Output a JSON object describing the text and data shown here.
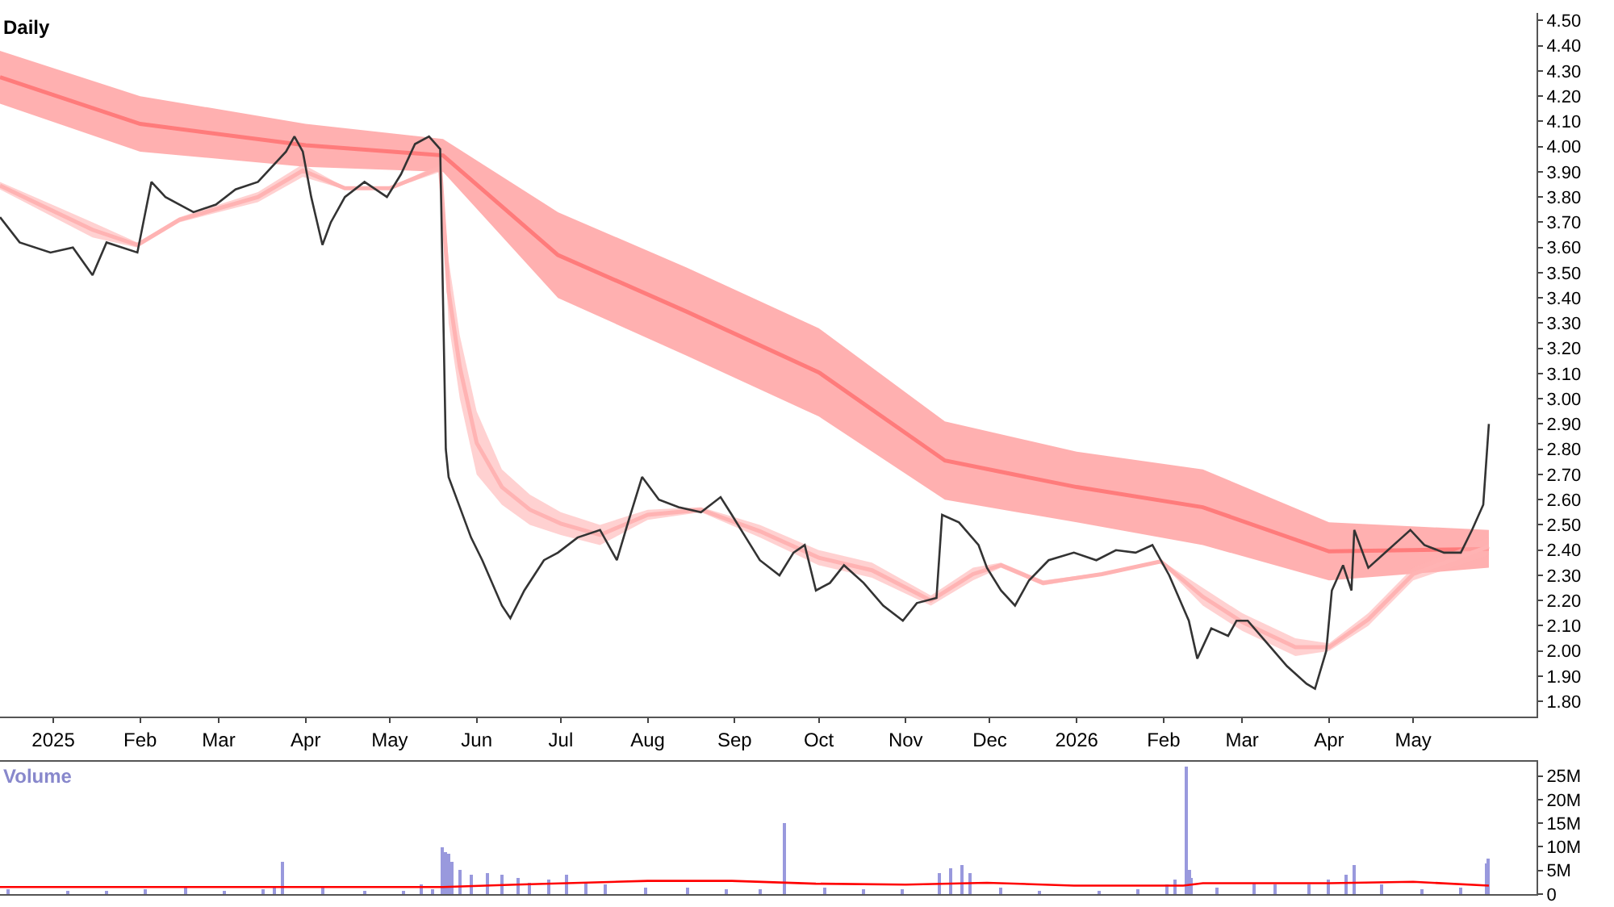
{
  "chart_data": [
    {
      "type": "line",
      "title": "Daily",
      "xlim": [
        "2024-12-13",
        "2026-06-14"
      ],
      "ylim": [
        1.74,
        4.53
      ],
      "xticks": [
        {
          "value": "2025-01-01",
          "label": "2025"
        },
        {
          "value": "2025-02-01",
          "label": "Feb"
        },
        {
          "value": "2025-03-01",
          "label": "Mar"
        },
        {
          "value": "2025-04-01",
          "label": "Apr"
        },
        {
          "value": "2025-05-01",
          "label": "May"
        },
        {
          "value": "2025-06-01",
          "label": "Jun"
        },
        {
          "value": "2025-07-01",
          "label": "Jul"
        },
        {
          "value": "2025-08-01",
          "label": "Aug"
        },
        {
          "value": "2025-09-01",
          "label": "Sep"
        },
        {
          "value": "2025-10-01",
          "label": "Oct"
        },
        {
          "value": "2025-11-01",
          "label": "Nov"
        },
        {
          "value": "2025-12-01",
          "label": "Dec"
        },
        {
          "value": "2026-01-01",
          "label": "2026"
        },
        {
          "value": "2026-02-01",
          "label": "Feb"
        },
        {
          "value": "2026-03-01",
          "label": "Mar"
        },
        {
          "value": "2026-04-01",
          "label": "Apr"
        },
        {
          "value": "2026-05-01",
          "label": "May"
        }
      ],
      "yticks": [
        {
          "value": 1.8,
          "label": "1.80"
        },
        {
          "value": 1.9,
          "label": "1.90"
        },
        {
          "value": 2.0,
          "label": "2.00"
        },
        {
          "value": 2.1,
          "label": "2.10"
        },
        {
          "value": 2.2,
          "label": "2.20"
        },
        {
          "value": 2.3,
          "label": "2.30"
        },
        {
          "value": 2.4,
          "label": "2.40"
        },
        {
          "value": 2.5,
          "label": "2.50"
        },
        {
          "value": 2.6,
          "label": "2.60"
        },
        {
          "value": 2.7,
          "label": "2.70"
        },
        {
          "value": 2.8,
          "label": "2.80"
        },
        {
          "value": 2.9,
          "label": "2.90"
        },
        {
          "value": 3.0,
          "label": "3.00"
        },
        {
          "value": 3.1,
          "label": "3.10"
        },
        {
          "value": 3.2,
          "label": "3.20"
        },
        {
          "value": 3.3,
          "label": "3.30"
        },
        {
          "value": 3.4,
          "label": "3.40"
        },
        {
          "value": 3.5,
          "label": "3.50"
        },
        {
          "value": 3.6,
          "label": "3.60"
        },
        {
          "value": 3.7,
          "label": "3.70"
        },
        {
          "value": 3.8,
          "label": "3.80"
        },
        {
          "value": 3.9,
          "label": "3.90"
        },
        {
          "value": 4.0,
          "label": "4.00"
        },
        {
          "value": 4.1,
          "label": "4.10"
        },
        {
          "value": 4.2,
          "label": "4.20"
        },
        {
          "value": 4.3,
          "label": "4.30"
        },
        {
          "value": 4.4,
          "label": "4.40"
        },
        {
          "value": 4.5,
          "label": "4.50"
        }
      ],
      "grid": false,
      "series": [
        {
          "color": "#ff7b7b",
          "x": [
            "2024-12-13",
            "2025-02-01",
            "2025-04-01",
            "2025-05-20",
            "2025-06-30",
            "2025-08-15",
            "2025-10-01",
            "2025-11-15",
            "2026-01-01",
            "2026-02-15",
            "2026-04-01",
            "2026-05-28"
          ],
          "lower": [
            4.17,
            3.98,
            3.92,
            3.9,
            3.4,
            3.17,
            2.93,
            2.6,
            2.51,
            2.42,
            2.28,
            2.33
          ],
          "upper": [
            4.38,
            4.2,
            4.09,
            4.03,
            3.74,
            3.52,
            3.28,
            2.91,
            2.79,
            2.72,
            2.51,
            2.48
          ],
          "values": [
            4.275,
            4.09,
            4.005,
            3.965,
            3.57,
            3.345,
            3.105,
            2.755,
            2.65,
            2.57,
            2.395,
            2.405
          ]
        },
        {
          "color": "#ffb3b3",
          "x": [
            "2024-12-13",
            "2025-01-15",
            "2025-01-31",
            "2025-02-15",
            "2025-03-15",
            "2025-03-31",
            "2025-04-15",
            "2025-05-01",
            "2025-05-19",
            "2025-05-22",
            "2025-05-26",
            "2025-06-01",
            "2025-06-10",
            "2025-06-20",
            "2025-07-01",
            "2025-07-15",
            "2025-08-01",
            "2025-08-20",
            "2025-09-10",
            "2025-10-01",
            "2025-10-20",
            "2025-11-10",
            "2025-11-25",
            "2025-12-05",
            "2025-12-20",
            "2026-01-10",
            "2026-01-31",
            "2026-02-15",
            "2026-03-01",
            "2026-03-20",
            "2026-04-01",
            "2026-04-15",
            "2026-05-01",
            "2026-05-28"
          ],
          "lower": [
            3.83,
            3.64,
            3.6,
            3.7,
            3.78,
            3.88,
            3.83,
            3.83,
            3.9,
            3.3,
            3.0,
            2.7,
            2.58,
            2.5,
            2.46,
            2.42,
            2.52,
            2.55,
            2.45,
            2.34,
            2.29,
            2.18,
            2.28,
            2.33,
            2.26,
            2.3,
            2.35,
            2.18,
            2.08,
            1.98,
            2.0,
            2.1,
            2.28,
            2.38
          ],
          "upper": [
            3.86,
            3.7,
            3.62,
            3.72,
            3.82,
            3.93,
            3.84,
            3.84,
            3.93,
            3.55,
            3.25,
            2.95,
            2.72,
            2.62,
            2.55,
            2.5,
            2.56,
            2.57,
            2.5,
            2.4,
            2.35,
            2.22,
            2.33,
            2.35,
            2.28,
            2.31,
            2.36,
            2.25,
            2.15,
            2.05,
            2.03,
            2.15,
            2.33,
            2.45
          ],
          "values": [
            3.845,
            3.67,
            3.61,
            3.71,
            3.8,
            3.905,
            3.835,
            3.835,
            3.915,
            3.425,
            3.125,
            2.825,
            2.65,
            2.56,
            2.505,
            2.46,
            2.54,
            2.56,
            2.475,
            2.37,
            2.32,
            2.2,
            2.305,
            2.34,
            2.27,
            2.305,
            2.355,
            2.215,
            2.115,
            2.015,
            2.015,
            2.125,
            2.305,
            2.415
          ]
        },
        {
          "color": "#333333",
          "x": [
            "2024-12-13",
            "2024-12-20",
            "2024-12-31",
            "2025-01-08",
            "2025-01-15",
            "2025-01-20",
            "2025-01-31",
            "2025-02-05",
            "2025-02-10",
            "2025-02-20",
            "2025-02-28",
            "2025-03-07",
            "2025-03-15",
            "2025-03-25",
            "2025-03-28",
            "2025-03-31",
            "2025-04-03",
            "2025-04-07",
            "2025-04-10",
            "2025-04-15",
            "2025-04-22",
            "2025-04-30",
            "2025-05-05",
            "2025-05-10",
            "2025-05-15",
            "2025-05-19",
            "2025-05-21",
            "2025-05-22",
            "2025-05-26",
            "2025-05-30",
            "2025-06-03",
            "2025-06-10",
            "2025-06-13",
            "2025-06-18",
            "2025-06-25",
            "2025-06-30",
            "2025-07-07",
            "2025-07-15",
            "2025-07-21",
            "2025-07-25",
            "2025-07-30",
            "2025-08-05",
            "2025-08-12",
            "2025-08-20",
            "2025-08-27",
            "2025-08-31",
            "2025-09-05",
            "2025-09-10",
            "2025-09-17",
            "2025-09-22",
            "2025-09-26",
            "2025-09-30",
            "2025-10-05",
            "2025-10-10",
            "2025-10-17",
            "2025-10-24",
            "2025-10-31",
            "2025-11-05",
            "2025-11-12",
            "2025-11-14",
            "2025-11-20",
            "2025-11-27",
            "2025-11-30",
            "2025-12-05",
            "2025-12-10",
            "2025-12-15",
            "2025-12-22",
            "2025-12-31",
            "2026-01-08",
            "2026-01-15",
            "2026-01-22",
            "2026-01-28",
            "2026-02-03",
            "2026-02-10",
            "2026-02-13",
            "2026-02-18",
            "2026-02-24",
            "2026-02-27",
            "2026-03-03",
            "2026-03-10",
            "2026-03-17",
            "2026-03-24",
            "2026-03-27",
            "2026-03-31",
            "2026-04-02",
            "2026-04-06",
            "2026-04-09",
            "2026-04-10",
            "2026-04-15",
            "2026-04-20",
            "2026-04-27",
            "2026-04-30",
            "2026-05-05",
            "2026-05-12",
            "2026-05-18",
            "2026-05-22",
            "2026-05-26",
            "2026-05-28"
          ],
          "values": [
            3.72,
            3.62,
            3.58,
            3.6,
            3.49,
            3.62,
            3.58,
            3.86,
            3.8,
            3.74,
            3.77,
            3.83,
            3.86,
            3.98,
            4.04,
            3.98,
            3.8,
            3.61,
            3.7,
            3.8,
            3.86,
            3.8,
            3.89,
            4.01,
            4.04,
            3.99,
            2.8,
            2.69,
            2.57,
            2.45,
            2.36,
            2.18,
            2.13,
            2.24,
            2.36,
            2.39,
            2.45,
            2.48,
            2.36,
            2.51,
            2.69,
            2.6,
            2.57,
            2.55,
            2.61,
            2.54,
            2.45,
            2.36,
            2.3,
            2.39,
            2.42,
            2.24,
            2.27,
            2.34,
            2.27,
            2.18,
            2.12,
            2.19,
            2.21,
            2.54,
            2.51,
            2.42,
            2.33,
            2.24,
            2.18,
            2.28,
            2.36,
            2.39,
            2.36,
            2.4,
            2.39,
            2.42,
            2.3,
            2.12,
            1.97,
            2.09,
            2.06,
            2.12,
            2.12,
            2.03,
            1.94,
            1.87,
            1.85,
            2.0,
            2.24,
            2.34,
            2.24,
            2.48,
            2.33,
            2.38,
            2.45,
            2.48,
            2.42,
            2.39,
            2.39,
            2.48,
            2.58,
            2.9
          ]
        }
      ]
    },
    {
      "type": "bar",
      "title": "Volume",
      "xlim": [
        "2024-12-13",
        "2026-06-14"
      ],
      "ylim": [
        0,
        28
      ],
      "tick_labels": "y",
      "grid": false,
      "yticks": [
        0,
        {
          "value": 5,
          "label": "5M"
        },
        {
          "value": 10,
          "label": "10M"
        },
        {
          "value": 15,
          "label": "15M"
        },
        {
          "value": 20,
          "label": "20M"
        },
        {
          "value": 25,
          "label": "25M"
        }
      ],
      "series": [
        {
          "color": "#9999dd",
          "x": [
            "2024-12-16",
            "2025-01-06",
            "2025-01-20",
            "2025-02-03",
            "2025-02-17",
            "2025-03-03",
            "2025-03-17",
            "2025-03-21",
            "2025-03-24",
            "2025-04-07",
            "2025-04-22",
            "2025-05-06",
            "2025-05-12",
            "2025-05-16",
            "2025-05-20",
            "2025-05-21",
            "2025-05-22",
            "2025-05-23",
            "2025-05-26",
            "2025-05-30",
            "2025-06-05",
            "2025-06-10",
            "2025-06-16",
            "2025-06-20",
            "2025-06-27",
            "2025-07-03",
            "2025-07-10",
            "2025-07-17",
            "2025-07-31",
            "2025-08-15",
            "2025-08-29",
            "2025-09-10",
            "2025-09-19",
            "2025-10-03",
            "2025-10-17",
            "2025-10-31",
            "2025-11-13",
            "2025-11-17",
            "2025-11-21",
            "2025-11-24",
            "2025-12-05",
            "2025-12-19",
            "2026-01-09",
            "2026-01-23",
            "2026-02-02",
            "2026-02-05",
            "2026-02-09",
            "2026-02-10",
            "2026-02-11",
            "2026-02-20",
            "2026-03-05",
            "2026-03-13",
            "2026-03-25",
            "2026-04-01",
            "2026-04-07",
            "2026-04-10",
            "2026-04-20",
            "2026-05-04",
            "2026-05-18",
            "2026-05-27",
            "2026-05-28"
          ],
          "values": [
            1.0,
            0.8,
            0.8,
            0.9,
            1.5,
            0.8,
            0.9,
            1.8,
            7.0,
            1.5,
            0.7,
            0.8,
            2.0,
            1.0,
            10.0,
            9.0,
            8.5,
            7.0,
            5.0,
            4.0,
            4.5,
            4.0,
            3.5,
            2.5,
            3.0,
            4.0,
            2.5,
            2.0,
            1.5,
            1.2,
            1.0,
            1.0,
            15.0,
            1.2,
            1.0,
            1.0,
            4.5,
            5.5,
            6.0,
            4.5,
            1.2,
            0.8,
            0.8,
            1.0,
            2.0,
            3.0,
            27.0,
            5.0,
            3.5,
            1.5,
            2.5,
            2.0,
            2.0,
            3.0,
            4.0,
            6.0,
            2.0,
            1.0,
            1.2,
            6.5,
            7.5
          ]
        },
        {
          "type": "line",
          "color": "#ff0000",
          "x": [
            "2024-12-13",
            "2025-05-20",
            "2025-06-15",
            "2025-08-01",
            "2025-08-31",
            "2025-09-30",
            "2025-11-01",
            "2025-11-30",
            "2025-12-31",
            "2026-02-08",
            "2026-02-15",
            "2026-04-01",
            "2026-05-01",
            "2026-05-28"
          ],
          "values": [
            1.5,
            1.5,
            2.0,
            2.8,
            2.8,
            2.2,
            2.0,
            2.4,
            1.8,
            1.8,
            2.3,
            2.3,
            2.6,
            1.8
          ]
        }
      ]
    }
  ]
}
